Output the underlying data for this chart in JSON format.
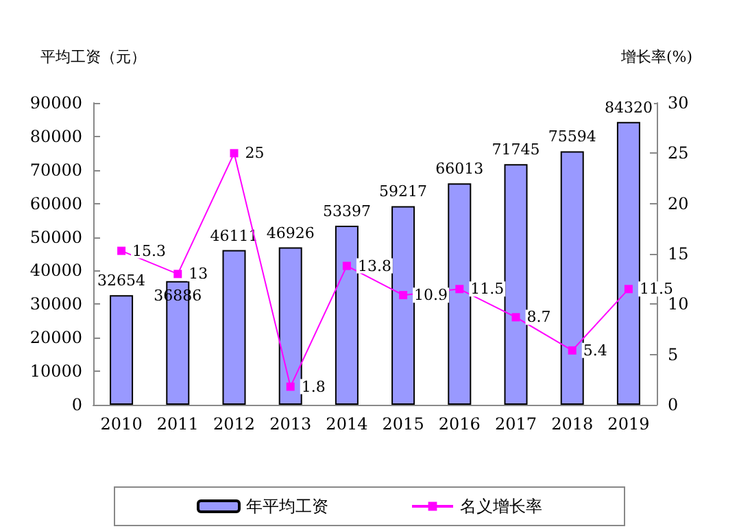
{
  "chart_data": {
    "type": "bar",
    "ylabel": "平均工资（元）",
    "y2label": "增长率(%)",
    "categories": [
      "2010",
      "2011",
      "2012",
      "2013",
      "2014",
      "2015",
      "2016",
      "2017",
      "2018",
      "2019"
    ],
    "series": [
      {
        "name": "年平均工资",
        "color": "#9999ff",
        "values": [
          32654,
          36886,
          46111,
          46926,
          53397,
          59217,
          66013,
          71745,
          75594,
          84320
        ]
      },
      {
        "name": "名义增长率",
        "type": "line",
        "axis": "y2",
        "color": "#ff00ff",
        "marker": "square",
        "values": [
          15.3,
          13,
          25,
          1.8,
          13.8,
          10.9,
          11.5,
          8.7,
          5.4,
          11.5
        ]
      }
    ],
    "ylim": [
      0,
      90000
    ],
    "yticks": [
      0,
      10000,
      20000,
      30000,
      40000,
      50000,
      60000,
      70000,
      80000,
      90000
    ],
    "y2lim": [
      0,
      30
    ],
    "y2ticks": [
      0,
      5,
      10,
      15,
      20,
      25,
      30
    ],
    "data_labels": true,
    "grid": false,
    "legend": "bottom"
  }
}
